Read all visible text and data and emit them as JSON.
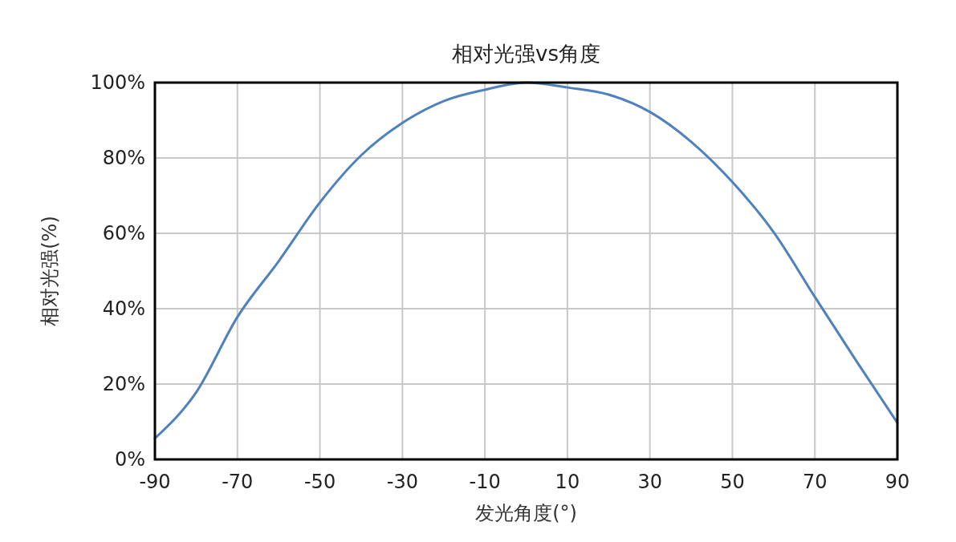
{
  "chart_data": {
    "type": "line",
    "title": "相对光强vs角度",
    "xlabel": "发光角度(°)",
    "ylabel": "相对光强(%)",
    "x": [
      -90,
      -80,
      -70,
      -60,
      -50,
      -40,
      -30,
      -20,
      -10,
      0,
      10,
      20,
      30,
      40,
      50,
      60,
      70,
      80,
      90
    ],
    "series": [
      {
        "color": "#4f81bd",
        "values": [
          5.6,
          17.8,
          37.8,
          52.6,
          68.2,
          80.7,
          89.3,
          95.1,
          98.1,
          100,
          98.7,
          96.8,
          92.2,
          84.3,
          73.6,
          60.3,
          43.1,
          26.2,
          9.7
        ]
      }
    ],
    "xlim": [
      -90,
      90
    ],
    "xticks": [
      -90,
      -70,
      -50,
      -30,
      -10,
      10,
      30,
      50,
      70,
      90
    ],
    "ylim": [
      0,
      100
    ],
    "yticks": [
      {
        "value": 0,
        "label": "0%"
      },
      {
        "value": 20,
        "label": "20%"
      },
      {
        "value": 40,
        "label": "40%"
      },
      {
        "value": 60,
        "label": "60%"
      },
      {
        "value": 80,
        "label": "80%"
      },
      {
        "value": 100,
        "label": "100%"
      }
    ],
    "grid": true,
    "marker": "none",
    "line_style": "solid"
  }
}
